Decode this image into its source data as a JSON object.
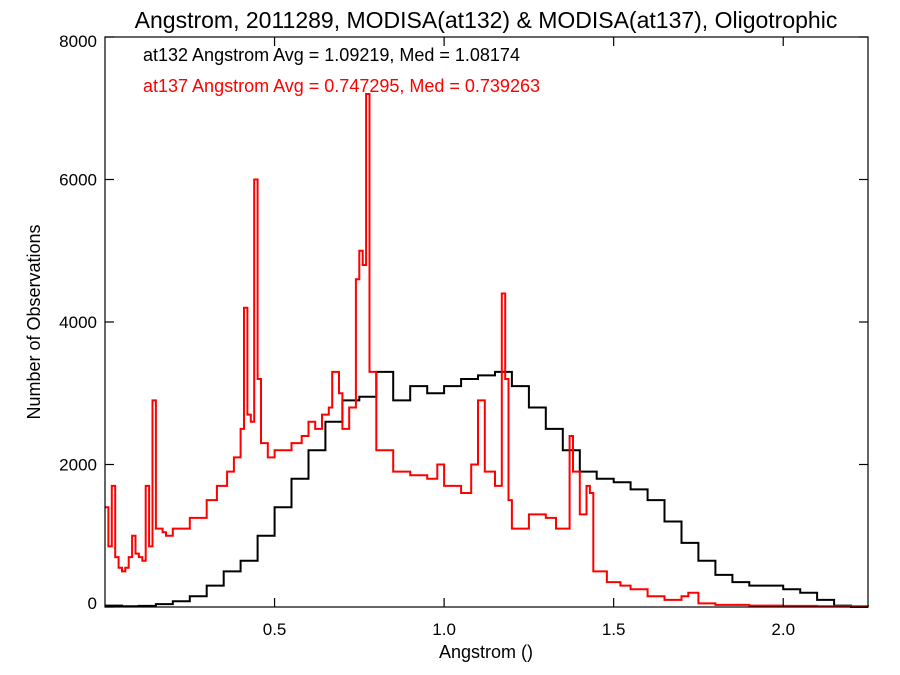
{
  "chart_data": {
    "type": "line",
    "title": "Angstrom, 2011289, MODISA(at132) & MODISA(at137), Oligotrophic",
    "xlabel": "Angstrom ()",
    "ylabel": "Number of Observations",
    "xlim": [
      0.0,
      2.25
    ],
    "ylim": [
      0,
      8000
    ],
    "x_ticks": [
      0.5,
      1.0,
      1.5,
      2.0
    ],
    "x_tick_labels": [
      "0.5",
      "1.0",
      "1.5",
      "2.0"
    ],
    "y_ticks": [
      0,
      2000,
      4000,
      6000,
      8000
    ],
    "y_tick_labels": [
      "0",
      "2000",
      "4000",
      "6000",
      "8000"
    ],
    "step": "histogram",
    "grid": false,
    "annotations": [
      {
        "text": "at132 Angstrom Avg = 1.09219, Med = 1.08174",
        "color": "#000000"
      },
      {
        "text": "at137 Angstrom Avg = 0.747295, Med = 0.739263",
        "color": "#ff0000"
      }
    ],
    "series": [
      {
        "color": "#000000",
        "points": [
          [
            0.0,
            20
          ],
          [
            0.05,
            10
          ],
          [
            0.1,
            15
          ],
          [
            0.15,
            40
          ],
          [
            0.2,
            80
          ],
          [
            0.25,
            150
          ],
          [
            0.3,
            300
          ],
          [
            0.35,
            500
          ],
          [
            0.4,
            650
          ],
          [
            0.45,
            1000
          ],
          [
            0.5,
            1400
          ],
          [
            0.55,
            1800
          ],
          [
            0.6,
            2200
          ],
          [
            0.65,
            2600
          ],
          [
            0.7,
            2900
          ],
          [
            0.75,
            2950
          ],
          [
            0.8,
            3300
          ],
          [
            0.85,
            2900
          ],
          [
            0.9,
            3100
          ],
          [
            0.95,
            3000
          ],
          [
            1.0,
            3100
          ],
          [
            1.05,
            3200
          ],
          [
            1.1,
            3250
          ],
          [
            1.15,
            3300
          ],
          [
            1.2,
            3100
          ],
          [
            1.25,
            2800
          ],
          [
            1.3,
            2500
          ],
          [
            1.35,
            2200
          ],
          [
            1.4,
            1900
          ],
          [
            1.45,
            1800
          ],
          [
            1.5,
            1750
          ],
          [
            1.55,
            1650
          ],
          [
            1.6,
            1500
          ],
          [
            1.65,
            1200
          ],
          [
            1.7,
            900
          ],
          [
            1.75,
            650
          ],
          [
            1.8,
            450
          ],
          [
            1.85,
            350
          ],
          [
            1.9,
            300
          ],
          [
            1.95,
            300
          ],
          [
            2.0,
            250
          ],
          [
            2.05,
            200
          ],
          [
            2.1,
            100
          ],
          [
            2.15,
            20
          ],
          [
            2.2,
            0
          ],
          [
            2.25,
            0
          ]
        ]
      },
      {
        "color": "#ff0000",
        "points": [
          [
            0.0,
            1400
          ],
          [
            0.01,
            850
          ],
          [
            0.02,
            1700
          ],
          [
            0.03,
            700
          ],
          [
            0.04,
            550
          ],
          [
            0.05,
            500
          ],
          [
            0.06,
            550
          ],
          [
            0.07,
            700
          ],
          [
            0.08,
            1000
          ],
          [
            0.09,
            750
          ],
          [
            0.1,
            700
          ],
          [
            0.11,
            650
          ],
          [
            0.12,
            1700
          ],
          [
            0.13,
            850
          ],
          [
            0.14,
            2900
          ],
          [
            0.15,
            1100
          ],
          [
            0.17,
            1050
          ],
          [
            0.18,
            1000
          ],
          [
            0.2,
            1100
          ],
          [
            0.25,
            1250
          ],
          [
            0.3,
            1500
          ],
          [
            0.33,
            1700
          ],
          [
            0.36,
            1900
          ],
          [
            0.38,
            2100
          ],
          [
            0.4,
            2500
          ],
          [
            0.41,
            4200
          ],
          [
            0.42,
            2700
          ],
          [
            0.43,
            2600
          ],
          [
            0.44,
            6000
          ],
          [
            0.45,
            3200
          ],
          [
            0.46,
            2300
          ],
          [
            0.48,
            2100
          ],
          [
            0.5,
            2200
          ],
          [
            0.55,
            2300
          ],
          [
            0.58,
            2400
          ],
          [
            0.6,
            2600
          ],
          [
            0.62,
            2500
          ],
          [
            0.64,
            2700
          ],
          [
            0.66,
            2800
          ],
          [
            0.67,
            3300
          ],
          [
            0.69,
            3000
          ],
          [
            0.7,
            2500
          ],
          [
            0.72,
            2800
          ],
          [
            0.74,
            4600
          ],
          [
            0.75,
            5000
          ],
          [
            0.76,
            4800
          ],
          [
            0.77,
            7200
          ],
          [
            0.78,
            3300
          ],
          [
            0.8,
            2200
          ],
          [
            0.85,
            1900
          ],
          [
            0.9,
            1850
          ],
          [
            0.95,
            1800
          ],
          [
            0.98,
            2000
          ],
          [
            1.0,
            1700
          ],
          [
            1.05,
            1600
          ],
          [
            1.08,
            2000
          ],
          [
            1.1,
            2900
          ],
          [
            1.12,
            1900
          ],
          [
            1.15,
            1700
          ],
          [
            1.17,
            4400
          ],
          [
            1.18,
            3200
          ],
          [
            1.19,
            1500
          ],
          [
            1.2,
            1100
          ],
          [
            1.25,
            1300
          ],
          [
            1.3,
            1250
          ],
          [
            1.33,
            1100
          ],
          [
            1.37,
            2400
          ],
          [
            1.38,
            1900
          ],
          [
            1.4,
            1300
          ],
          [
            1.42,
            1700
          ],
          [
            1.43,
            1600
          ],
          [
            1.44,
            500
          ],
          [
            1.48,
            350
          ],
          [
            1.52,
            300
          ],
          [
            1.55,
            250
          ],
          [
            1.6,
            150
          ],
          [
            1.65,
            100
          ],
          [
            1.7,
            150
          ],
          [
            1.72,
            200
          ],
          [
            1.75,
            50
          ],
          [
            1.8,
            30
          ],
          [
            1.9,
            20
          ],
          [
            2.0,
            15
          ],
          [
            2.1,
            10
          ],
          [
            2.25,
            5
          ]
        ]
      }
    ]
  }
}
